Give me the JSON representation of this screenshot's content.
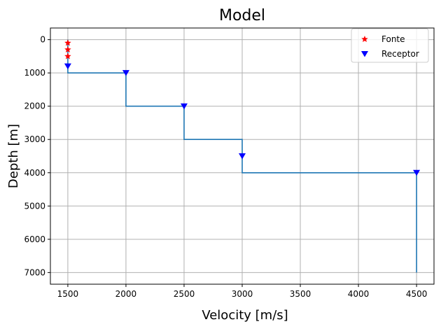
{
  "chart_data": {
    "type": "line",
    "title": "Model",
    "xlabel": "Velocity [m/s]",
    "ylabel": "Depth [m]",
    "xlim": [
      1350,
      4650
    ],
    "ylim": [
      7350,
      -350
    ],
    "y_inverted": true,
    "xticks": [
      1500,
      2000,
      2500,
      3000,
      3500,
      4000,
      4500
    ],
    "yticks": [
      0,
      1000,
      2000,
      3000,
      4000,
      5000,
      6000,
      7000
    ],
    "grid": true,
    "legend_position": "top-right",
    "profile": {
      "color": "#1f77b4",
      "points": [
        {
          "velocity": 1500,
          "depth": 0
        },
        {
          "velocity": 1500,
          "depth": 1000
        },
        {
          "velocity": 2000,
          "depth": 1000
        },
        {
          "velocity": 2000,
          "depth": 2000
        },
        {
          "velocity": 2500,
          "depth": 2000
        },
        {
          "velocity": 2500,
          "depth": 3000
        },
        {
          "velocity": 3000,
          "depth": 3000
        },
        {
          "velocity": 3000,
          "depth": 4000
        },
        {
          "velocity": 4500,
          "depth": 4000
        },
        {
          "velocity": 4500,
          "depth": 7000
        }
      ]
    },
    "series": [
      {
        "name": "Fonte",
        "marker": "star",
        "color": "#ff0000",
        "points": [
          {
            "velocity": 1500,
            "depth": 100
          },
          {
            "velocity": 1500,
            "depth": 300
          },
          {
            "velocity": 1500,
            "depth": 500
          }
        ]
      },
      {
        "name": "Receptor",
        "marker": "triangle-down",
        "color": "#0000ff",
        "points": [
          {
            "velocity": 1500,
            "depth": 800
          },
          {
            "velocity": 2000,
            "depth": 1000
          },
          {
            "velocity": 2500,
            "depth": 2000
          },
          {
            "velocity": 3000,
            "depth": 3500
          },
          {
            "velocity": 4500,
            "depth": 4000
          }
        ]
      }
    ]
  }
}
